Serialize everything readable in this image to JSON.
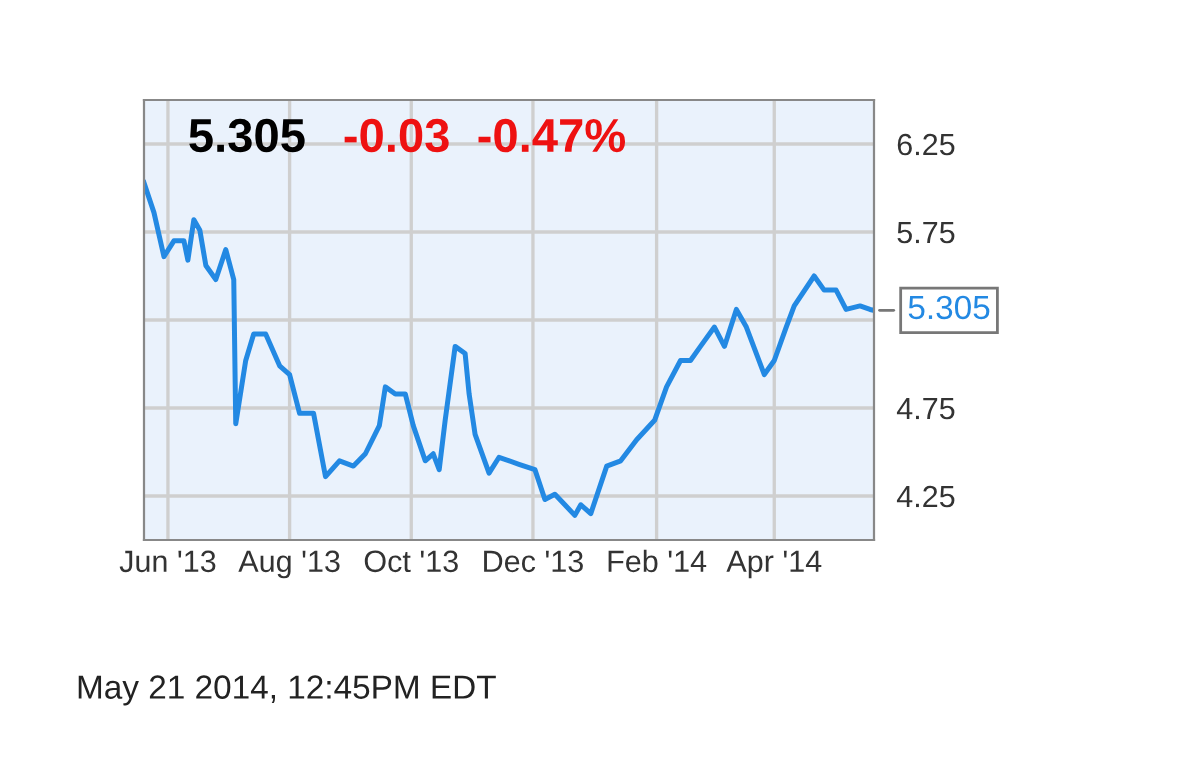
{
  "chart_data": {
    "type": "line",
    "title": "5.305",
    "subtitle": "-0.03  -0.47%",
    "x": [
      "2013-05-20",
      "2013-05-25",
      "2013-05-30",
      "2013-06-04",
      "2013-06-09",
      "2013-06-11",
      "2013-06-14",
      "2013-06-17",
      "2013-06-20",
      "2013-06-25",
      "2013-06-30",
      "2013-07-04",
      "2013-07-05",
      "2013-07-10",
      "2013-07-14",
      "2013-07-20",
      "2013-07-27",
      "2013-08-01",
      "2013-08-06",
      "2013-08-13",
      "2013-08-19",
      "2013-08-26",
      "2013-09-02",
      "2013-09-08",
      "2013-09-15",
      "2013-09-18",
      "2013-09-23",
      "2013-09-28",
      "2013-10-02",
      "2013-10-08",
      "2013-10-12",
      "2013-10-15",
      "2013-10-18",
      "2013-10-23",
      "2013-10-28",
      "2013-10-30",
      "2013-11-02",
      "2013-11-09",
      "2013-11-14",
      "2013-11-24",
      "2013-12-02",
      "2013-12-07",
      "2013-12-12",
      "2013-12-17",
      "2013-12-22",
      "2013-12-25",
      "2013-12-30",
      "2014-01-07",
      "2014-01-14",
      "2014-01-22",
      "2014-01-31",
      "2014-02-06",
      "2014-02-13",
      "2014-02-18",
      "2014-02-23",
      "2014-03-02",
      "2014-03-07",
      "2014-03-13",
      "2014-03-18",
      "2014-03-27",
      "2014-04-01",
      "2014-04-07",
      "2014-04-11",
      "2014-04-21",
      "2014-04-26",
      "2014-05-02",
      "2014-05-07",
      "2014-05-14",
      "2014-05-19",
      "2014-05-21"
    ],
    "series": [
      {
        "color": "#2389e3",
        "values": [
          6.03,
          5.86,
          5.61,
          5.7,
          5.7,
          5.59,
          5.82,
          5.76,
          5.56,
          5.48,
          5.65,
          5.48,
          4.66,
          5.02,
          5.17,
          5.17,
          4.99,
          4.94,
          4.72,
          4.72,
          4.36,
          4.45,
          4.42,
          4.49,
          4.65,
          4.87,
          4.83,
          4.83,
          4.65,
          4.45,
          4.49,
          4.4,
          4.68,
          5.1,
          5.06,
          4.83,
          4.6,
          4.38,
          4.47,
          4.43,
          4.4,
          4.23,
          4.26,
          4.2,
          4.14,
          4.2,
          4.15,
          4.42,
          4.45,
          4.57,
          4.68,
          4.87,
          5.02,
          5.02,
          5.1,
          5.21,
          5.1,
          5.31,
          5.21,
          4.94,
          5.02,
          5.21,
          5.33,
          5.5,
          5.42,
          5.42,
          5.31,
          5.33,
          5.31,
          5.305
        ]
      }
    ],
    "xlim": [
      "2013-05-20",
      "2014-05-21"
    ],
    "xticks": [
      {
        "value": "2013-06-01",
        "label": "Jun '13"
      },
      {
        "value": "2013-08-01",
        "label": "Aug '13"
      },
      {
        "value": "2013-10-01",
        "label": "Oct '13"
      },
      {
        "value": "2013-12-01",
        "label": "Dec '13"
      },
      {
        "value": "2014-02-01",
        "label": "Feb '14"
      },
      {
        "value": "2014-04-01",
        "label": "Apr '14"
      }
    ],
    "ylim": [
      4.0,
      6.5
    ],
    "yticks": [
      4.25,
      4.75,
      {
        "value": 5.25,
        "label": null
      },
      5.75,
      6.25
    ],
    "grid": true,
    "marker": "none",
    "line_style": "solid",
    "annotations": [
      {
        "text": "5.305",
        "x": "2014-05-21",
        "y": 5.305
      },
      "May 21 2014, 12:45PM EDT"
    ]
  }
}
